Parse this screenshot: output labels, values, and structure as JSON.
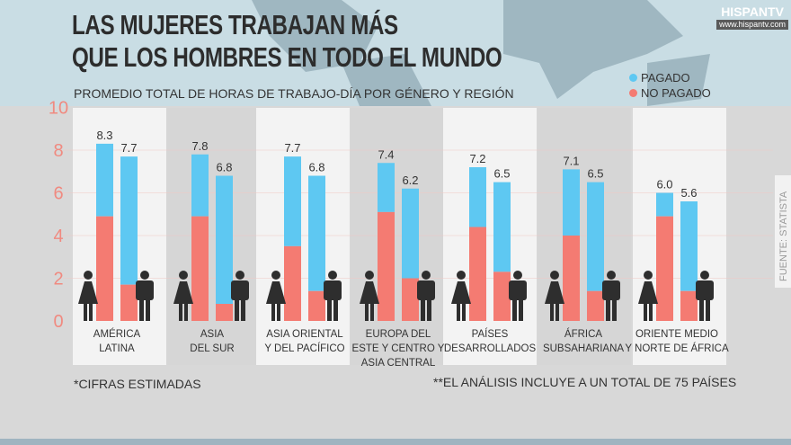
{
  "title": [
    "LAS MUJERES TRABAJAN MÁS",
    "QUE LOS HOMBRES EN TODO EL MUNDO"
  ],
  "subtitle": "PROMEDIO TOTAL DE HORAS DE TRABAJO-DÍA POR GÉNERO Y REGIÓN",
  "logo": {
    "name": "HISPANTV",
    "url_text": "www.hispantv.com"
  },
  "source": "FUENTE: STATISTA",
  "footnotes": [
    "*CIFRAS ESTIMADAS",
    "**EL ANÁLISIS INCLUYE A UN TOTAL DE 75 PAÍSES"
  ],
  "colors": {
    "paid": "#5ec8f2",
    "unpaid": "#f47b72",
    "axis": "#f08a80",
    "icon": "#2e2e2e"
  },
  "chart_data": {
    "type": "bar",
    "stacked": true,
    "ylim": [
      0,
      10
    ],
    "yticks": [
      0,
      2,
      4,
      6,
      8,
      10
    ],
    "legend": {
      "position": "top-right",
      "entries": [
        "PAGADO",
        "NO PAGADO"
      ]
    },
    "categories": [
      [
        "AMÉRICA",
        "LATINA"
      ],
      [
        "ASIA",
        "DEL SUR"
      ],
      [
        "ASIA ORIENTAL",
        "Y DEL PACÍFICO"
      ],
      [
        "EUROPA DEL",
        "ESTE Y CENTRO Y",
        "ASIA CENTRAL"
      ],
      [
        "PAÍSES",
        "DESARROLLADOS"
      ],
      [
        "ÁFRICA",
        "SUBSAHARIANA"
      ],
      [
        "ORIENTE MEDIO",
        "Y NORTE DE ÁFRICA"
      ]
    ],
    "groups": [
      "mujer",
      "hombre"
    ],
    "total_labels": {
      "mujer": [
        "8.3",
        "7.8",
        "7.7",
        "7.4",
        "7.2",
        "7.1",
        "6.0"
      ],
      "hombre": [
        "7.7",
        "6.8",
        "6.8",
        "6.2",
        "6.5",
        "6.5",
        "5.6"
      ]
    },
    "series": [
      {
        "name": "NO PAGADO",
        "mujer": [
          4.9,
          4.9,
          3.5,
          5.1,
          4.4,
          4.0,
          4.9
        ],
        "hombre": [
          1.7,
          0.8,
          1.4,
          2.0,
          2.3,
          1.4,
          1.4
        ]
      },
      {
        "name": "PAGADO",
        "mujer": [
          3.4,
          2.9,
          4.2,
          2.3,
          2.8,
          3.1,
          1.1
        ],
        "hombre": [
          6.0,
          6.0,
          5.4,
          4.2,
          4.2,
          5.1,
          4.2
        ]
      }
    ]
  }
}
